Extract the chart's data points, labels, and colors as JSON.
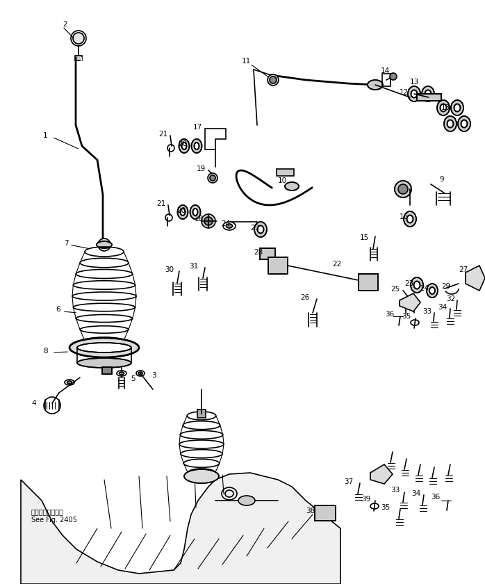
{
  "background_color": "#ffffff",
  "fig_width": 6.98,
  "fig_height": 8.4,
  "dpi": 100,
  "note_line1": "第２４０５回参照",
  "note_line2": "See Fig. 2405"
}
